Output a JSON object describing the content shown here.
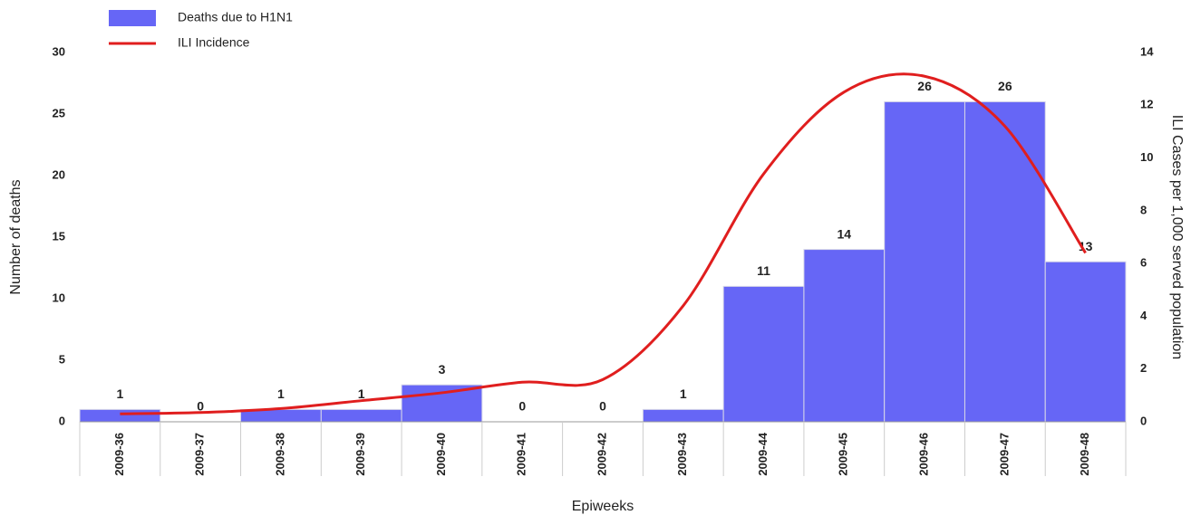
{
  "chart_data": {
    "type": "combo",
    "x_label": "Epiweeks",
    "y_label": "Number of deaths",
    "y2_label": "ILI Cases per 1,000 served population",
    "categories": [
      "2009-36",
      "2009-37",
      "2009-38",
      "2009-39",
      "2009-40",
      "2009-41",
      "2009-42",
      "2009-43",
      "2009-44",
      "2009-45",
      "2009-46",
      "2009-47",
      "2009-48"
    ],
    "series": [
      {
        "name": "Deaths due to H1N1",
        "type": "bar",
        "color": "#6666f6",
        "values": [
          1,
          0,
          1,
          1,
          3,
          0,
          0,
          1,
          11,
          14,
          26,
          26,
          13
        ]
      },
      {
        "name": "ILI Incidence",
        "type": "line",
        "axis": "y2",
        "color": "#e01e1e",
        "values": [
          0.3,
          0.35,
          0.5,
          0.8,
          1.1,
          1.5,
          1.6,
          4.4,
          9.4,
          12.5,
          13.1,
          11.2,
          6.4
        ]
      }
    ],
    "ylim": [
      0,
      30
    ],
    "yticks": [
      0,
      5,
      10,
      15,
      20,
      25,
      30
    ],
    "y2lim": [
      0,
      14
    ],
    "y2ticks": [
      0,
      2,
      4,
      6,
      8,
      10,
      12,
      14
    ],
    "legend": "upper left",
    "grid": false
  }
}
